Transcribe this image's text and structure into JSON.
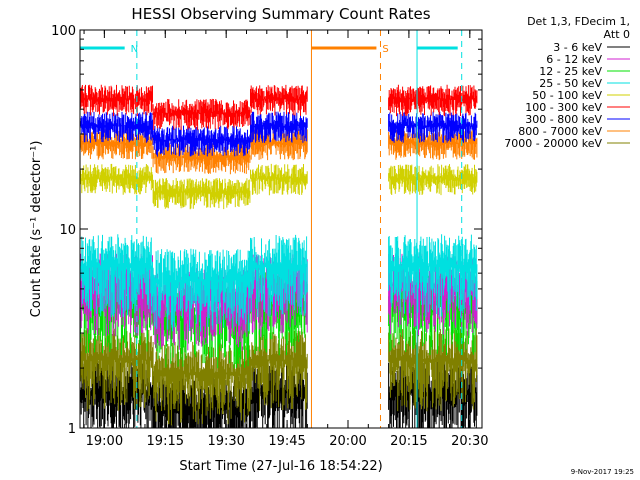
{
  "chart_data": {
    "type": "line",
    "title": "HESSI Observing Summary Count Rates",
    "xlabel": "Start Time (27-Jul-16 18:54:22)",
    "ylabel": "Count Rate (s⁻¹ detector⁻¹)",
    "yscale": "log",
    "ylim": [
      1,
      100
    ],
    "xlim_minutes": [
      18.9,
      20.55
    ],
    "x_ticks": [
      "19:00",
      "19:15",
      "19:30",
      "19:45",
      "20:00",
      "20:15",
      "20:30"
    ],
    "y_ticks": [
      "1",
      "10",
      "100"
    ],
    "legend_header": [
      "Det 1,3, FDecim 1,",
      "Att 0"
    ],
    "legend": [
      {
        "label": "3 - 6 keV",
        "color": "#000000"
      },
      {
        "label": "6 - 12 keV",
        "color": "#d020d0"
      },
      {
        "label": "12 - 25 keV",
        "color": "#00e000"
      },
      {
        "label": "25 - 50 keV",
        "color": "#00e0e0"
      },
      {
        "label": "50 - 100 keV",
        "color": "#d0d000"
      },
      {
        "label": "100 - 300 keV",
        "color": "#ff0000"
      },
      {
        "label": "300 - 800 keV",
        "color": "#0000ff"
      },
      {
        "label": "800 - 7000 keV",
        "color": "#ff8000"
      },
      {
        "label": "7000 - 20000 keV",
        "color": "#808000"
      }
    ],
    "intervals": [
      {
        "label": "N",
        "color": "#00e0e0",
        "start": "18:54",
        "end": "19:08",
        "bar_end": "19:05"
      },
      {
        "label": "S",
        "color": "#ff8000",
        "start": "19:51",
        "end": "20:08",
        "bar_end": "20:07"
      },
      {
        "label": "",
        "color": "#00e0e0",
        "start": "20:17",
        "end": "20:28"
      }
    ],
    "series": [
      {
        "name": "100 - 300 keV",
        "color": "#ff0000",
        "approx_level": 45
      },
      {
        "name": "300 - 800 keV",
        "color": "#0000ff",
        "approx_level": 33
      },
      {
        "name": "800 - 7000 keV",
        "color": "#ff8000",
        "approx_level": 27
      },
      {
        "name": "50 - 100 keV",
        "color": "#d0d000",
        "approx_level": 18
      },
      {
        "name": "25 - 50 keV",
        "color": "#00e0e0",
        "approx_level": 6.5
      },
      {
        "name": "6 - 12 keV",
        "color": "#d020d0",
        "approx_level": 5.2
      },
      {
        "name": "12 - 25 keV",
        "color": "#00e000",
        "approx_level": 4.2
      },
      {
        "name": "7000 - 20000 keV",
        "color": "#808000",
        "approx_level": 2.2
      },
      {
        "name": "3 - 6 keV",
        "color": "#000000",
        "approx_level": 1.5
      }
    ],
    "data_gap": [
      "19:50",
      "20:10"
    ]
  },
  "footer_date": "9-Nov-2017 19:25"
}
